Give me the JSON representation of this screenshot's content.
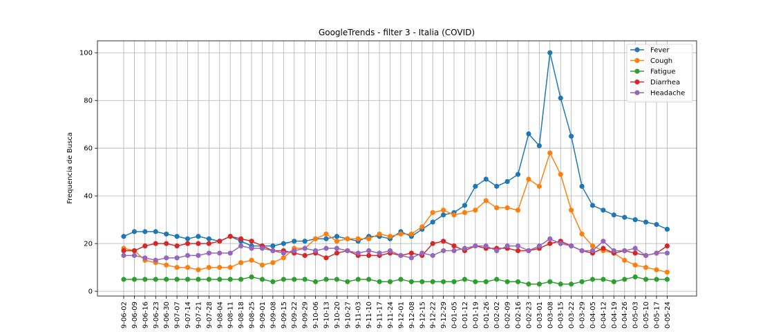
{
  "chart_data": {
    "type": "line",
    "title": "GoogleTrends - filter 3 - Italia (COVID)",
    "xlabel": "",
    "ylabel": "Frequencia de Busca",
    "ylim": [
      -2,
      105
    ],
    "yticks": [
      0,
      20,
      40,
      60,
      80,
      100
    ],
    "grid": true,
    "legend_position": "top-right",
    "categories": [
      "9-06-02",
      "9-06-09",
      "9-06-16",
      "9-06-23",
      "9-06-30",
      "9-07-07",
      "9-07-14",
      "9-07-21",
      "9-07-28",
      "9-08-04",
      "9-08-11",
      "9-08-18",
      "9-08-25",
      "9-09-01",
      "9-09-08",
      "9-09-15",
      "9-09-22",
      "9-09-29",
      "9-10-06",
      "9-10-13",
      "9-10-20",
      "9-10-27",
      "9-11-03",
      "9-11-10",
      "9-11-17",
      "9-11-24",
      "9-12-01",
      "9-12-08",
      "9-12-15",
      "9-12-22",
      "9-12-29",
      "0-01-05",
      "0-01-12",
      "0-01-19",
      "0-01-26",
      "0-02-02",
      "0-02-09",
      "0-02-16",
      "0-02-23",
      "0-03-01",
      "0-03-08",
      "0-03-15",
      "0-03-22",
      "0-03-29",
      "0-04-05",
      "0-04-12",
      "0-04-19",
      "0-04-26",
      "0-05-03",
      "0-05-10",
      "0-05-17",
      "0-05-24"
    ],
    "series": [
      {
        "name": "Fever",
        "color": "#1f77b4",
        "values": [
          23,
          25,
          25,
          25,
          24,
          23,
          22,
          23,
          22,
          21,
          23,
          21,
          19,
          19,
          19,
          20,
          21,
          21,
          22,
          22,
          23,
          22,
          21,
          23,
          23,
          22,
          25,
          23,
          26,
          29,
          32,
          33,
          36,
          44,
          47,
          44,
          46,
          49,
          66,
          61,
          100,
          81,
          65,
          44,
          36,
          34,
          32,
          31,
          30,
          29,
          28,
          26
        ]
      },
      {
        "name": "Cough",
        "color": "#ff7f0e",
        "values": [
          18,
          17,
          13,
          12,
          11,
          10,
          10,
          9,
          10,
          10,
          10,
          12,
          13,
          11,
          12,
          14,
          18,
          18,
          22,
          24,
          21,
          22,
          22,
          22,
          24,
          23,
          24,
          24,
          27,
          33,
          34,
          32,
          33,
          34,
          38,
          35,
          35,
          34,
          47,
          44,
          58,
          49,
          34,
          24,
          19,
          17,
          16,
          13,
          11,
          10,
          9,
          8
        ]
      },
      {
        "name": "Fatigue",
        "color": "#2ca02c",
        "values": [
          5,
          5,
          5,
          5,
          5,
          5,
          5,
          5,
          5,
          5,
          5,
          5,
          6,
          5,
          4,
          5,
          5,
          5,
          4,
          5,
          5,
          4,
          5,
          5,
          4,
          4,
          5,
          4,
          4,
          4,
          4,
          4,
          5,
          4,
          4,
          5,
          4,
          4,
          3,
          3,
          4,
          3,
          3,
          4,
          5,
          5,
          4,
          5,
          6,
          5,
          5,
          5
        ]
      },
      {
        "name": "Diarrhea",
        "color": "#d62728",
        "values": [
          17,
          17,
          19,
          20,
          20,
          19,
          20,
          20,
          20,
          21,
          23,
          22,
          21,
          19,
          17,
          17,
          16,
          15,
          16,
          14,
          16,
          17,
          15,
          15,
          15,
          16,
          15,
          16,
          15,
          20,
          21,
          19,
          17,
          19,
          18,
          18,
          18,
          17,
          17,
          18,
          20,
          21,
          19,
          17,
          16,
          18,
          16,
          17,
          16,
          15,
          16,
          19
        ]
      },
      {
        "name": "Headache",
        "color": "#9467bd",
        "values": [
          15,
          15,
          14,
          13,
          14,
          14,
          15,
          15,
          16,
          16,
          16,
          19,
          18,
          18,
          17,
          16,
          17,
          18,
          17,
          18,
          18,
          17,
          16,
          17,
          16,
          17,
          15,
          14,
          16,
          15,
          17,
          17,
          18,
          19,
          19,
          17,
          19,
          19,
          17,
          19,
          22,
          20,
          19,
          17,
          17,
          21,
          17,
          17,
          18,
          15,
          16,
          16
        ]
      }
    ]
  }
}
